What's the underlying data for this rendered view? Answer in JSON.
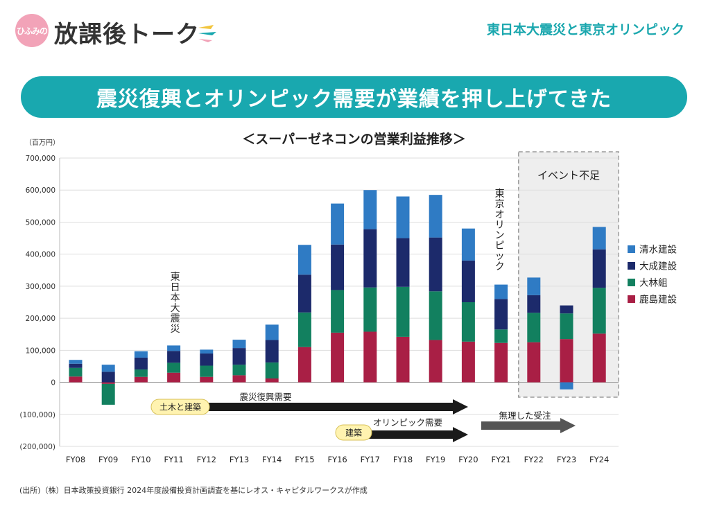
{
  "logo": {
    "badge": "ひふみの",
    "title": "放課後トーク"
  },
  "topic": "東日本大震災と東京オリンピック",
  "banner": "震災復興とオリンピック需要が業績を押し上げてきた",
  "chart_title": "＜スーパーゼネコンの営業利益推移＞",
  "source": "(出所)（株）日本政策投資銀行 2024年度設備投資計画調査を基にレオス・キャピタルワークスが作成",
  "colors": {
    "teal": "#19a8af",
    "kajima": "#a91f45",
    "obayashi": "#12805f",
    "taisei": "#1c2a6b",
    "shimizu": "#2f7bc4"
  },
  "chart_data": {
    "type": "bar",
    "stacked": true,
    "ylabel": "（百万円）",
    "ylim": [
      -200000,
      700000
    ],
    "yticks": [
      "700,000",
      "600,000",
      "500,000",
      "400,000",
      "300,000",
      "200,000",
      "100,000",
      "0",
      "(100,000)",
      "(200,000)"
    ],
    "grid": true,
    "legend_position": "right",
    "categories": [
      "FY08",
      "FY09",
      "FY10",
      "FY11",
      "FY12",
      "FY13",
      "FY14",
      "FY15",
      "FY16",
      "FY17",
      "FY18",
      "FY19",
      "FY20",
      "FY21",
      "FY22",
      "FY23",
      "FY24"
    ],
    "series": [
      {
        "name": "鹿島建設",
        "values": [
          18000,
          -5000,
          17000,
          30000,
          17000,
          22000,
          12000,
          110000,
          155000,
          158000,
          142000,
          132000,
          127000,
          123000,
          125000,
          135000,
          152000
        ]
      },
      {
        "name": "大林組",
        "values": [
          27000,
          -65000,
          23000,
          31000,
          35000,
          33000,
          50000,
          108000,
          133000,
          138000,
          156000,
          152000,
          123000,
          42000,
          92000,
          80000,
          143000
        ]
      },
      {
        "name": "大成建設",
        "values": [
          13000,
          33000,
          37000,
          37000,
          38000,
          52000,
          70000,
          118000,
          142000,
          182000,
          152000,
          168000,
          130000,
          95000,
          55000,
          25000,
          120000
        ]
      },
      {
        "name": "清水建設",
        "values": [
          12000,
          22000,
          20000,
          17000,
          12000,
          26000,
          48000,
          93000,
          128000,
          122000,
          130000,
          133000,
          100000,
          45000,
          55000,
          -22000,
          70000
        ]
      }
    ],
    "legend": [
      "清水建設",
      "大成建設",
      "大林組",
      "鹿島建設"
    ],
    "annotations": {
      "earthquake": "東日本大震災",
      "olympic": "東京オリンピック",
      "event_shortage": "イベント不足",
      "arrow1_tag": "土木と建築",
      "arrow1_label": "震災復興需要",
      "arrow2_tag": "建築",
      "arrow2_label": "オリンピック需要",
      "arrow3_label": "無理した受注"
    }
  }
}
